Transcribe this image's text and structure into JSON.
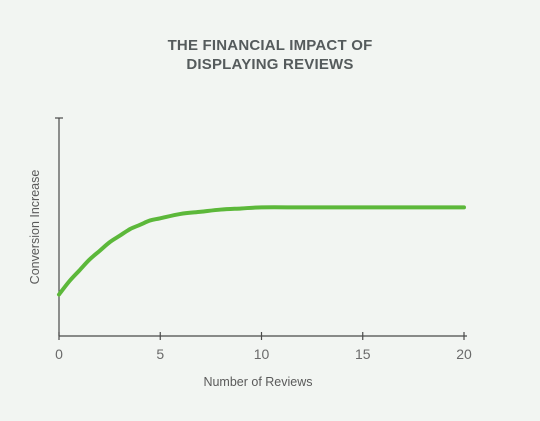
{
  "chart_data": {
    "type": "line",
    "title": [
      "THE FINANCIAL IMPACT OF",
      "DISPLAYING REVIEWS"
    ],
    "xlabel": "Number of Reviews",
    "ylabel": "Conversion Increase",
    "xlim": [
      0,
      20
    ],
    "xticks": [
      0,
      5,
      10,
      15,
      20
    ],
    "ylim": [
      0,
      1
    ],
    "yticks_shown": false,
    "grid": false,
    "series": [
      {
        "x": [
          0,
          0.5,
          1,
          1.5,
          2,
          2.5,
          3,
          3.5,
          4,
          4.5,
          5,
          6,
          7,
          8,
          9,
          10,
          12,
          14,
          16,
          18,
          20
        ],
        "y": [
          0.19,
          0.25,
          0.3,
          0.35,
          0.39,
          0.43,
          0.46,
          0.49,
          0.51,
          0.53,
          0.54,
          0.56,
          0.57,
          0.58,
          0.585,
          0.59,
          0.59,
          0.59,
          0.59,
          0.59,
          0.59
        ]
      }
    ],
    "colors": {
      "line": "#5cb83a",
      "axis": "#4a4a4a"
    }
  }
}
